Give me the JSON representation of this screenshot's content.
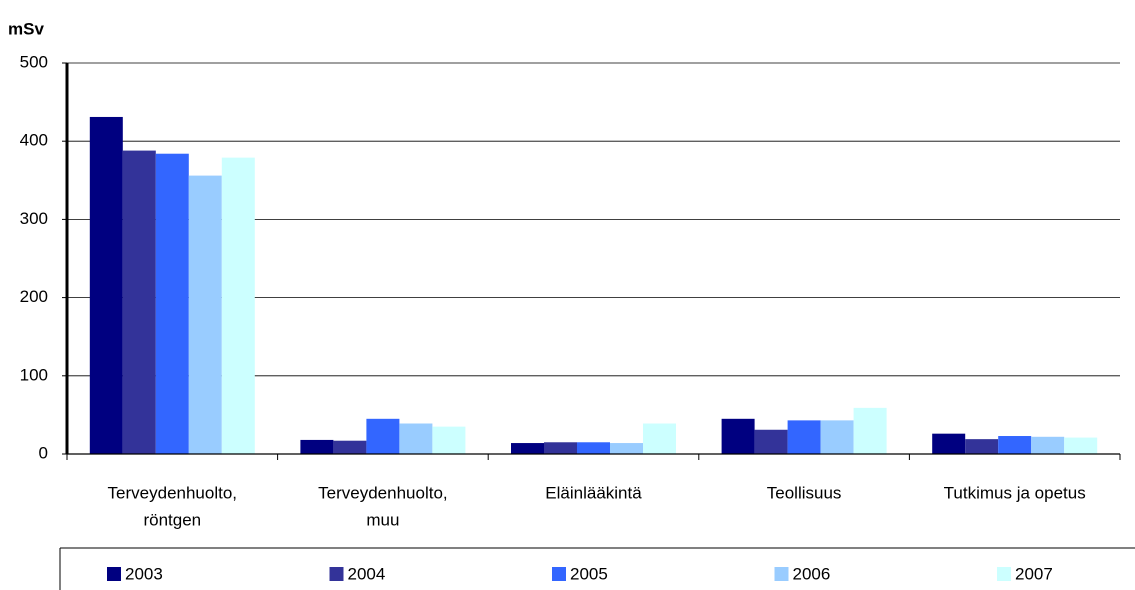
{
  "chart_data": {
    "type": "bar",
    "y_label": "mSv",
    "categories": [
      [
        "Terveydenhuolto,",
        "röntgen"
      ],
      [
        "Terveydenhuolto,",
        "muu"
      ],
      [
        "Eläinlääkintä"
      ],
      [
        "Teollisuus"
      ],
      [
        "Tutkimus ja opetus"
      ]
    ],
    "series": [
      {
        "name": "2003",
        "color": "#000080",
        "values": [
          431,
          18,
          14,
          45,
          26
        ]
      },
      {
        "name": "2004",
        "color": "#333399",
        "values": [
          388,
          17,
          15,
          31,
          19
        ]
      },
      {
        "name": "2005",
        "color": "#3366ff",
        "values": [
          384,
          45,
          15,
          43,
          23
        ]
      },
      {
        "name": "2006",
        "color": "#99ccff",
        "values": [
          356,
          39,
          14,
          43,
          22
        ]
      },
      {
        "name": "2007",
        "color": "#ccffff",
        "values": [
          379,
          35,
          39,
          59,
          21
        ]
      }
    ],
    "ylim": [
      0,
      500
    ],
    "yticks": [
      0,
      100,
      200,
      300,
      400,
      500
    ],
    "grid": true,
    "legend": "bottom"
  }
}
